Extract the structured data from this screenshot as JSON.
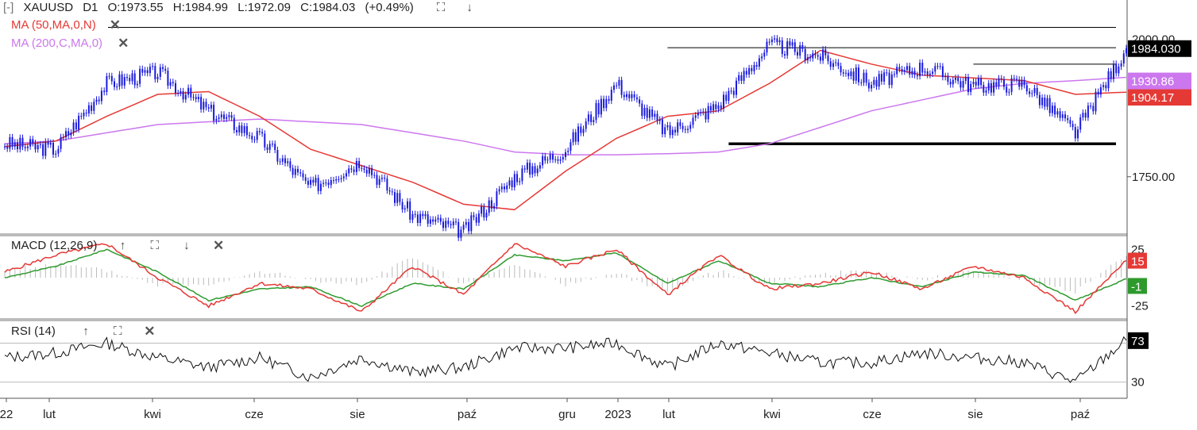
{
  "header": {
    "collapse_glyph": "[-]",
    "symbol": "XAUUSD",
    "timeframe": "D1",
    "open": "O:1973.55",
    "high": "H:1984.99",
    "low": "L:1972.09",
    "close": "C:1984.03",
    "change": "(+0.49%)",
    "icons": [
      "expand-icon",
      "arrow-down-icon"
    ]
  },
  "indicators": {
    "ma50": {
      "label": "MA (50,MA,0,N)",
      "color": "#e53935"
    },
    "ma200": {
      "label": "MA (200,C,MA,0)",
      "color": "#cc77ee"
    },
    "macd": {
      "label": "MACD (12,26,9)",
      "value_macd": "15",
      "value_signal": "-1",
      "tick_upper": "25",
      "tick_lower": "-25"
    },
    "rsi": {
      "label": "RSI (14)",
      "value": "73",
      "tick": "30"
    }
  },
  "price_axis": {
    "tick_1750": "1750.00",
    "tick_2000": "2000.00",
    "last_price": "1984.030",
    "ma200_value": "1930.86",
    "ma50_value": "1904.17"
  },
  "colors": {
    "candles": "#1a1adb",
    "macd_line": "#e53935",
    "signal_line": "#2e9a2e",
    "histogram": "#bbbbbb",
    "rsi_line": "#111111",
    "last_price_bg": "#000000",
    "ma200_bg": "#cc77ee",
    "ma50_bg": "#e53935",
    "macd_tag_bg": "#e53935",
    "signal_tag_bg": "#2e9a2e"
  },
  "x_axis": {
    "labels": [
      "22",
      "lut",
      "kwi",
      "cze",
      "sie",
      "paź",
      "gru",
      "2023",
      "lut",
      "kwi",
      "cze",
      "sie",
      "paź"
    ]
  },
  "chart_data": {
    "type": "line",
    "title": "XAUUSD D1",
    "price_unit_note": "",
    "x": [
      "2022-01",
      "2022-02",
      "2022-03",
      "2022-04",
      "2022-05",
      "2022-06",
      "2022-07",
      "2022-08",
      "2022-09",
      "2022-10",
      "2022-11",
      "2022-12",
      "2023-01",
      "2023-02",
      "2023-03",
      "2023-04",
      "2023-05",
      "2023-06",
      "2023-07",
      "2023-08",
      "2023-09",
      "2023-10",
      "2023-11"
    ],
    "series": [
      {
        "name": "XAUUSD",
        "values": [
          1810,
          1800,
          1920,
          1940,
          1870,
          1820,
          1730,
          1780,
          1680,
          1650,
          1750,
          1800,
          1920,
          1830,
          1880,
          1990,
          1970,
          1920,
          1950,
          1915,
          1920,
          1830,
          1984
        ]
      },
      {
        "name": "MA (50,MA,0,N)",
        "values": [
          1805,
          1815,
          1860,
          1900,
          1905,
          1860,
          1800,
          1770,
          1740,
          1700,
          1690,
          1760,
          1820,
          1860,
          1870,
          1920,
          1980,
          1955,
          1935,
          1930,
          1925,
          1900,
          1904
        ]
      },
      {
        "name": "MA (200,C,MA,0)",
        "values": [
          1810,
          1815,
          1830,
          1845,
          1850,
          1855,
          1850,
          1845,
          1830,
          1815,
          1795,
          1790,
          1790,
          1792,
          1795,
          1810,
          1840,
          1870,
          1890,
          1910,
          1920,
          1925,
          1931
        ]
      }
    ],
    "horizontal_lines": [
      2022,
      1985,
      1955,
      1810
    ],
    "ylim": [
      1650,
      2040
    ],
    "y_ticks": [
      1750,
      2000
    ],
    "last_price": 1984.03,
    "macd": {
      "ylim": [
        -35,
        35
      ],
      "ticks": [
        25,
        -25
      ],
      "macd_values": [
        5,
        20,
        30,
        0,
        -25,
        -5,
        -10,
        -30,
        10,
        -15,
        30,
        10,
        25,
        -15,
        20,
        -10,
        -5,
        5,
        -10,
        10,
        0,
        -30,
        15
      ],
      "signal_values": [
        0,
        10,
        25,
        5,
        -20,
        -10,
        -8,
        -25,
        -5,
        -10,
        20,
        15,
        22,
        -5,
        15,
        -5,
        -8,
        0,
        -8,
        5,
        2,
        -20,
        -1
      ]
    },
    "rsi": {
      "ylim": [
        15,
        90
      ],
      "ticks": [
        30
      ],
      "values": [
        55,
        60,
        70,
        55,
        45,
        55,
        35,
        55,
        40,
        45,
        65,
        65,
        70,
        45,
        70,
        60,
        50,
        50,
        60,
        55,
        50,
        30,
        73
      ]
    }
  }
}
